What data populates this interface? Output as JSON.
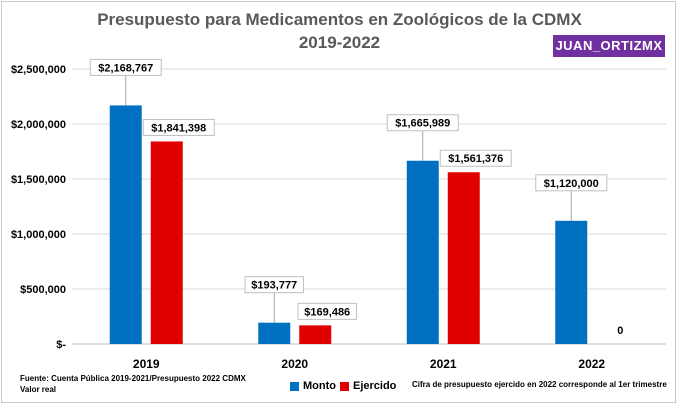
{
  "title_line1": "Presupuesto para Medicamentos en Zoológicos de la CDMX",
  "title_line2": "2019-2022",
  "badge": "JUAN_ORTIZMX",
  "footer": {
    "source": "Fuente: Cuenta Pública 2019-2021/Presupuesto 2022 CDMX",
    "note": "Valor real",
    "remark": "Cifra de presupuesto ejercido en 2022 corresponde al 1er trimestre"
  },
  "colors": {
    "monto": "#0070c0",
    "ejercido": "#e00000",
    "badge": "#7030a0"
  },
  "chart_data": {
    "type": "bar",
    "title": "Presupuesto para Medicamentos en Zoológicos de la CDMX 2019-2022",
    "categories": [
      "2019",
      "2020",
      "2021",
      "2022"
    ],
    "series": [
      {
        "name": "Monto",
        "values": [
          2168767,
          193777,
          1665989,
          1120000
        ],
        "labels": [
          "$2,168,767",
          "$193,777",
          "$1,665,989",
          "$1,120,000"
        ]
      },
      {
        "name": "Ejercido",
        "values": [
          1841398,
          169486,
          1561376,
          0
        ],
        "labels": [
          "$1,841,398",
          "$169,486",
          "$1,561,376",
          "0"
        ]
      }
    ],
    "yticks": [
      0,
      500000,
      1000000,
      1500000,
      2000000,
      2500000
    ],
    "ytick_labels": [
      "$-",
      "$500,000",
      "$1,000,000",
      "$1,500,000",
      "$2,000,000",
      "$2,500,000"
    ],
    "ylim": [
      0,
      2500000
    ],
    "grid": true,
    "legend": "bottom-center"
  }
}
